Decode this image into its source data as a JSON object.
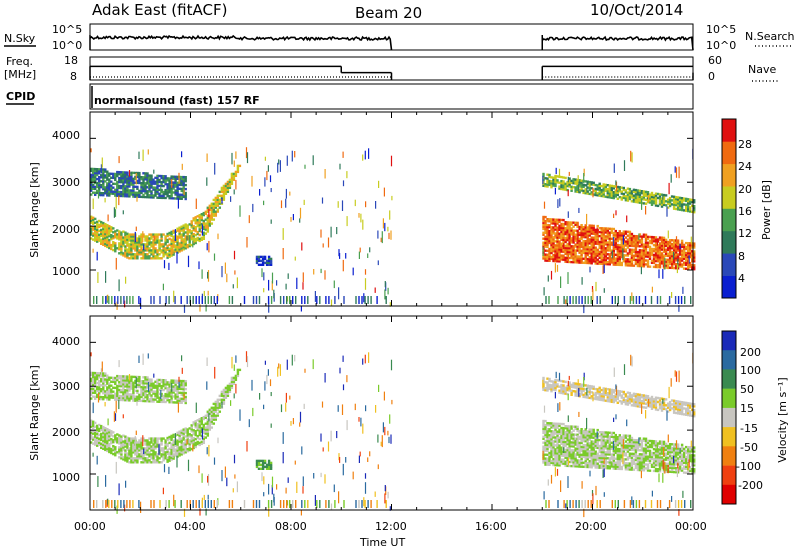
{
  "header": {
    "station": "Adak East (fitACF)",
    "beam": "Beam 20",
    "date": "10/Oct/2014"
  },
  "noise_panel": {
    "left_label": "N.Sky",
    "right_label": "N.Search",
    "left_ticks": [
      "10^5",
      "10^0"
    ],
    "right_ticks": [
      "10^5",
      "10^0"
    ]
  },
  "freq_panel": {
    "left_label_1": "Freq.",
    "left_label_2": "[MHz]",
    "right_label": "Nave",
    "left_ticks": [
      "18",
      "8"
    ],
    "right_ticks": [
      "60",
      "0"
    ]
  },
  "cpid_panel": {
    "label": "CPID",
    "text": "normalsound (fast) 157 RF"
  },
  "power_panel": {
    "ylabel": "Slant Range [km]",
    "yticks": [
      "4000",
      "3000",
      "2000",
      "1000"
    ],
    "colorbar_label": "Power [dB]",
    "colorbar_ticks": [
      "28",
      "24",
      "20",
      "16",
      "12",
      "8",
      "4"
    ],
    "colors": [
      "#0a1fd0",
      "#2a48b8",
      "#2f7a5a",
      "#4aa050",
      "#c8cc20",
      "#f0a020",
      "#f06a10",
      "#e01010"
    ]
  },
  "velocity_panel": {
    "ylabel": "Slant Range [km]",
    "yticks": [
      "4000",
      "3000",
      "2000",
      "1000"
    ],
    "colorbar_label": "Velocity [m s⁻¹]",
    "colorbar_ticks": [
      "200",
      "100",
      "50",
      "15",
      "-15",
      "-50",
      "-100",
      "-200"
    ],
    "colors": [
      "#1a2ab8",
      "#2a6aa0",
      "#3a8a50",
      "#7acb2a",
      "#c8c6c0",
      "#f0c020",
      "#f08010",
      "#f04010",
      "#e00000"
    ]
  },
  "x_axis": {
    "label": "Time UT",
    "ticks": [
      "00:00",
      "04:00",
      "08:00",
      "12:00",
      "16:00",
      "20:00",
      "00:00"
    ]
  },
  "chart_data": {
    "type": "heatmap",
    "title": "Adak East (fitACF)  Beam 20  10/Oct/2014",
    "xlabel": "Time UT",
    "ylabel": "Slant Range [km]",
    "x_range_hours": [
      0,
      24
    ],
    "y_range_km": [
      180,
      4600
    ],
    "data_gap_hours": [
      12,
      18
    ],
    "power_colorbar": {
      "label": "Power [dB]",
      "range": [
        0,
        32
      ],
      "ticks": [
        4,
        8,
        12,
        16,
        20,
        24,
        28
      ]
    },
    "velocity_colorbar": {
      "label": "Velocity [m s-1]",
      "ticks": [
        200,
        100,
        50,
        15,
        -15,
        -50,
        -100,
        -200
      ]
    },
    "frequency_mhz": [
      {
        "start_h": 0,
        "end_h": 10,
        "value": 14.5
      },
      {
        "start_h": 10,
        "end_h": 12,
        "value": 11.5
      },
      {
        "start_h": 18,
        "end_h": 24,
        "value": 14.5
      }
    ],
    "echo_regions": [
      {
        "name": "near range band",
        "start_h": 0.0,
        "end_h": 6.0,
        "range_km_start": [
          1700,
          1250,
          1250,
          1700,
          3400
        ],
        "range_km_end": [
          2200,
          1800,
          1800,
          2300,
          3500
        ],
        "power_db": 18,
        "velocity_ms": 0
      },
      {
        "name": "far range band",
        "start_h": 0.0,
        "end_h": 3.8,
        "range_km_start": [
          2700,
          2600
        ],
        "range_km_end": [
          3300,
          3100
        ],
        "power_db": 10,
        "velocity_ms": 0
      },
      {
        "name": "isolated patch",
        "start_h": 6.6,
        "end_h": 7.2,
        "range_km_start": [
          1100
        ],
        "range_km_end": [
          1300
        ],
        "power_db": 5,
        "velocity_ms": 40
      },
      {
        "name": "late band",
        "start_h": 18.0,
        "end_h": 24.0,
        "range_km_start": [
          1200,
          1000
        ],
        "range_km_end": [
          2200,
          1600
        ],
        "power_db": 26,
        "velocity_ms": 0
      },
      {
        "name": "late upper band",
        "start_h": 18.0,
        "end_h": 24.0,
        "range_km_start": [
          2900,
          2300
        ],
        "range_km_end": [
          3200,
          2600
        ],
        "power_db": 15,
        "velocity_ms": -20
      }
    ]
  }
}
